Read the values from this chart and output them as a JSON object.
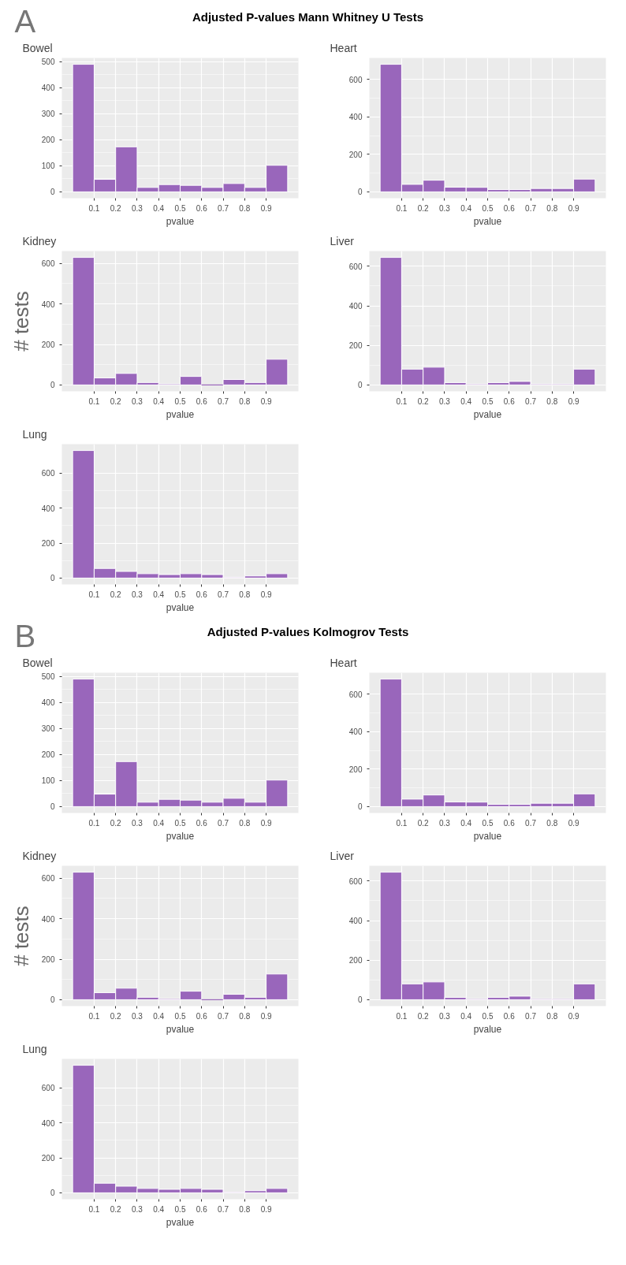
{
  "chart_data": [
    {
      "type": "histogram",
      "annotations": [
        "A",
        "Adjusted P-values Mann Whitney U Tests"
      ],
      "title": "Bowel",
      "xlabel": "pvalue",
      "bins": [
        0,
        0.1,
        0.2,
        0.3,
        0.4,
        0.5,
        0.6,
        0.7,
        0.8,
        0.9,
        1.0
      ],
      "values": [
        490,
        48,
        173,
        17,
        28,
        25,
        17,
        32,
        17,
        102
      ],
      "color": "#9966bb",
      "xlim": [
        -0.05,
        1.05
      ],
      "ylim": [
        -24.5,
        514.5
      ],
      "xticks": [
        0.1,
        0.2,
        0.3,
        0.4,
        0.5,
        0.6,
        0.7,
        0.8,
        0.9
      ],
      "yticks": [
        0,
        100,
        200,
        300,
        400,
        500
      ],
      "grid": true
    },
    {
      "type": "histogram",
      "title": "Heart",
      "xlabel": "pvalue",
      "bins": [
        0,
        0.1,
        0.2,
        0.3,
        0.4,
        0.5,
        0.6,
        0.7,
        0.8,
        0.9,
        1.0
      ],
      "values": [
        680,
        40,
        62,
        25,
        24,
        12,
        12,
        18,
        18,
        68
      ],
      "color": "#9966bb",
      "xlim": [
        -0.05,
        1.05
      ],
      "ylim": [
        -34,
        714
      ],
      "xticks": [
        0.1,
        0.2,
        0.3,
        0.4,
        0.5,
        0.6,
        0.7,
        0.8,
        0.9
      ],
      "yticks": [
        0,
        200,
        400,
        600
      ],
      "grid": true
    },
    {
      "type": "histogram",
      "title": "Kidney",
      "xlabel": "pvalue",
      "ylabel": "# tests",
      "bins": [
        0,
        0.1,
        0.2,
        0.3,
        0.4,
        0.5,
        0.6,
        0.7,
        0.8,
        0.9,
        1.0
      ],
      "values": [
        630,
        35,
        57,
        12,
        5,
        42,
        0,
        27,
        12,
        127
      ],
      "color": "#9966bb",
      "xlim": [
        -0.05,
        1.05
      ],
      "ylim": [
        -31.5,
        661.5
      ],
      "xticks": [
        0.1,
        0.2,
        0.3,
        0.4,
        0.5,
        0.6,
        0.7,
        0.8,
        0.9
      ],
      "yticks": [
        0,
        200,
        400,
        600
      ],
      "grid": true
    },
    {
      "type": "histogram",
      "title": "Liver",
      "xlabel": "pvalue",
      "bins": [
        0,
        0.1,
        0.2,
        0.3,
        0.4,
        0.5,
        0.6,
        0.7,
        0.8,
        0.9,
        1.0
      ],
      "values": [
        645,
        80,
        90,
        12,
        5,
        12,
        18,
        5,
        5,
        80
      ],
      "color": "#9966bb",
      "xlim": [
        -0.05,
        1.05
      ],
      "ylim": [
        -32.25,
        677.25
      ],
      "xticks": [
        0.1,
        0.2,
        0.3,
        0.4,
        0.5,
        0.6,
        0.7,
        0.8,
        0.9
      ],
      "yticks": [
        0,
        200,
        400,
        600
      ],
      "grid": true
    },
    {
      "type": "histogram",
      "title": "Lung",
      "xlabel": "pvalue",
      "bins": [
        0,
        0.1,
        0.2,
        0.3,
        0.4,
        0.5,
        0.6,
        0.7,
        0.8,
        0.9,
        1.0
      ],
      "values": [
        730,
        55,
        38,
        25,
        20,
        25,
        20,
        5,
        12,
        25
      ],
      "color": "#9966bb",
      "xlim": [
        -0.05,
        1.05
      ],
      "ylim": [
        -36.5,
        766.5
      ],
      "xticks": [
        0.1,
        0.2,
        0.3,
        0.4,
        0.5,
        0.6,
        0.7,
        0.8,
        0.9
      ],
      "yticks": [
        0,
        200,
        400,
        600
      ],
      "grid": true
    },
    {
      "type": "histogram",
      "annotations": [
        "B",
        "Adjusted P-values Kolmogrov Tests"
      ],
      "title": "Bowel",
      "xlabel": "pvalue",
      "bins": [
        0,
        0.1,
        0.2,
        0.3,
        0.4,
        0.5,
        0.6,
        0.7,
        0.8,
        0.9,
        1.0
      ],
      "values": [
        490,
        48,
        173,
        17,
        28,
        25,
        17,
        32,
        17,
        102
      ],
      "color": "#9966bb",
      "xlim": [
        -0.05,
        1.05
      ],
      "ylim": [
        -24.5,
        514.5
      ],
      "xticks": [
        0.1,
        0.2,
        0.3,
        0.4,
        0.5,
        0.6,
        0.7,
        0.8,
        0.9
      ],
      "yticks": [
        0,
        100,
        200,
        300,
        400,
        500
      ],
      "grid": true
    },
    {
      "type": "histogram",
      "title": "Heart",
      "xlabel": "pvalue",
      "bins": [
        0,
        0.1,
        0.2,
        0.3,
        0.4,
        0.5,
        0.6,
        0.7,
        0.8,
        0.9,
        1.0
      ],
      "values": [
        680,
        40,
        62,
        25,
        24,
        12,
        12,
        18,
        18,
        68
      ],
      "color": "#9966bb",
      "xlim": [
        -0.05,
        1.05
      ],
      "ylim": [
        -34,
        714
      ],
      "xticks": [
        0.1,
        0.2,
        0.3,
        0.4,
        0.5,
        0.6,
        0.7,
        0.8,
        0.9
      ],
      "yticks": [
        0,
        200,
        400,
        600
      ],
      "grid": true
    },
    {
      "type": "histogram",
      "title": "Kidney",
      "xlabel": "pvalue",
      "ylabel": "# tests",
      "bins": [
        0,
        0.1,
        0.2,
        0.3,
        0.4,
        0.5,
        0.6,
        0.7,
        0.8,
        0.9,
        1.0
      ],
      "values": [
        630,
        35,
        57,
        12,
        5,
        42,
        0,
        27,
        12,
        127
      ],
      "color": "#9966bb",
      "xlim": [
        -0.05,
        1.05
      ],
      "ylim": [
        -31.5,
        661.5
      ],
      "xticks": [
        0.1,
        0.2,
        0.3,
        0.4,
        0.5,
        0.6,
        0.7,
        0.8,
        0.9
      ],
      "yticks": [
        0,
        200,
        400,
        600
      ],
      "grid": true
    },
    {
      "type": "histogram",
      "title": "Liver",
      "xlabel": "pvalue",
      "bins": [
        0,
        0.1,
        0.2,
        0.3,
        0.4,
        0.5,
        0.6,
        0.7,
        0.8,
        0.9,
        1.0
      ],
      "values": [
        645,
        80,
        90,
        12,
        5,
        12,
        18,
        5,
        5,
        80
      ],
      "color": "#9966bb",
      "xlim": [
        -0.05,
        1.05
      ],
      "ylim": [
        -32.25,
        677.25
      ],
      "xticks": [
        0.1,
        0.2,
        0.3,
        0.4,
        0.5,
        0.6,
        0.7,
        0.8,
        0.9
      ],
      "yticks": [
        0,
        200,
        400,
        600
      ],
      "grid": true
    },
    {
      "type": "histogram",
      "title": "Lung",
      "xlabel": "pvalue",
      "bins": [
        0,
        0.1,
        0.2,
        0.3,
        0.4,
        0.5,
        0.6,
        0.7,
        0.8,
        0.9,
        1.0
      ],
      "values": [
        730,
        55,
        38,
        25,
        20,
        25,
        20,
        5,
        12,
        25
      ],
      "color": "#9966bb",
      "xlim": [
        -0.05,
        1.05
      ],
      "ylim": [
        -36.5,
        766.5
      ],
      "xticks": [
        0.1,
        0.2,
        0.3,
        0.4,
        0.5,
        0.6,
        0.7,
        0.8,
        0.9
      ],
      "yticks": [
        0,
        200,
        400,
        600
      ],
      "grid": true
    }
  ]
}
